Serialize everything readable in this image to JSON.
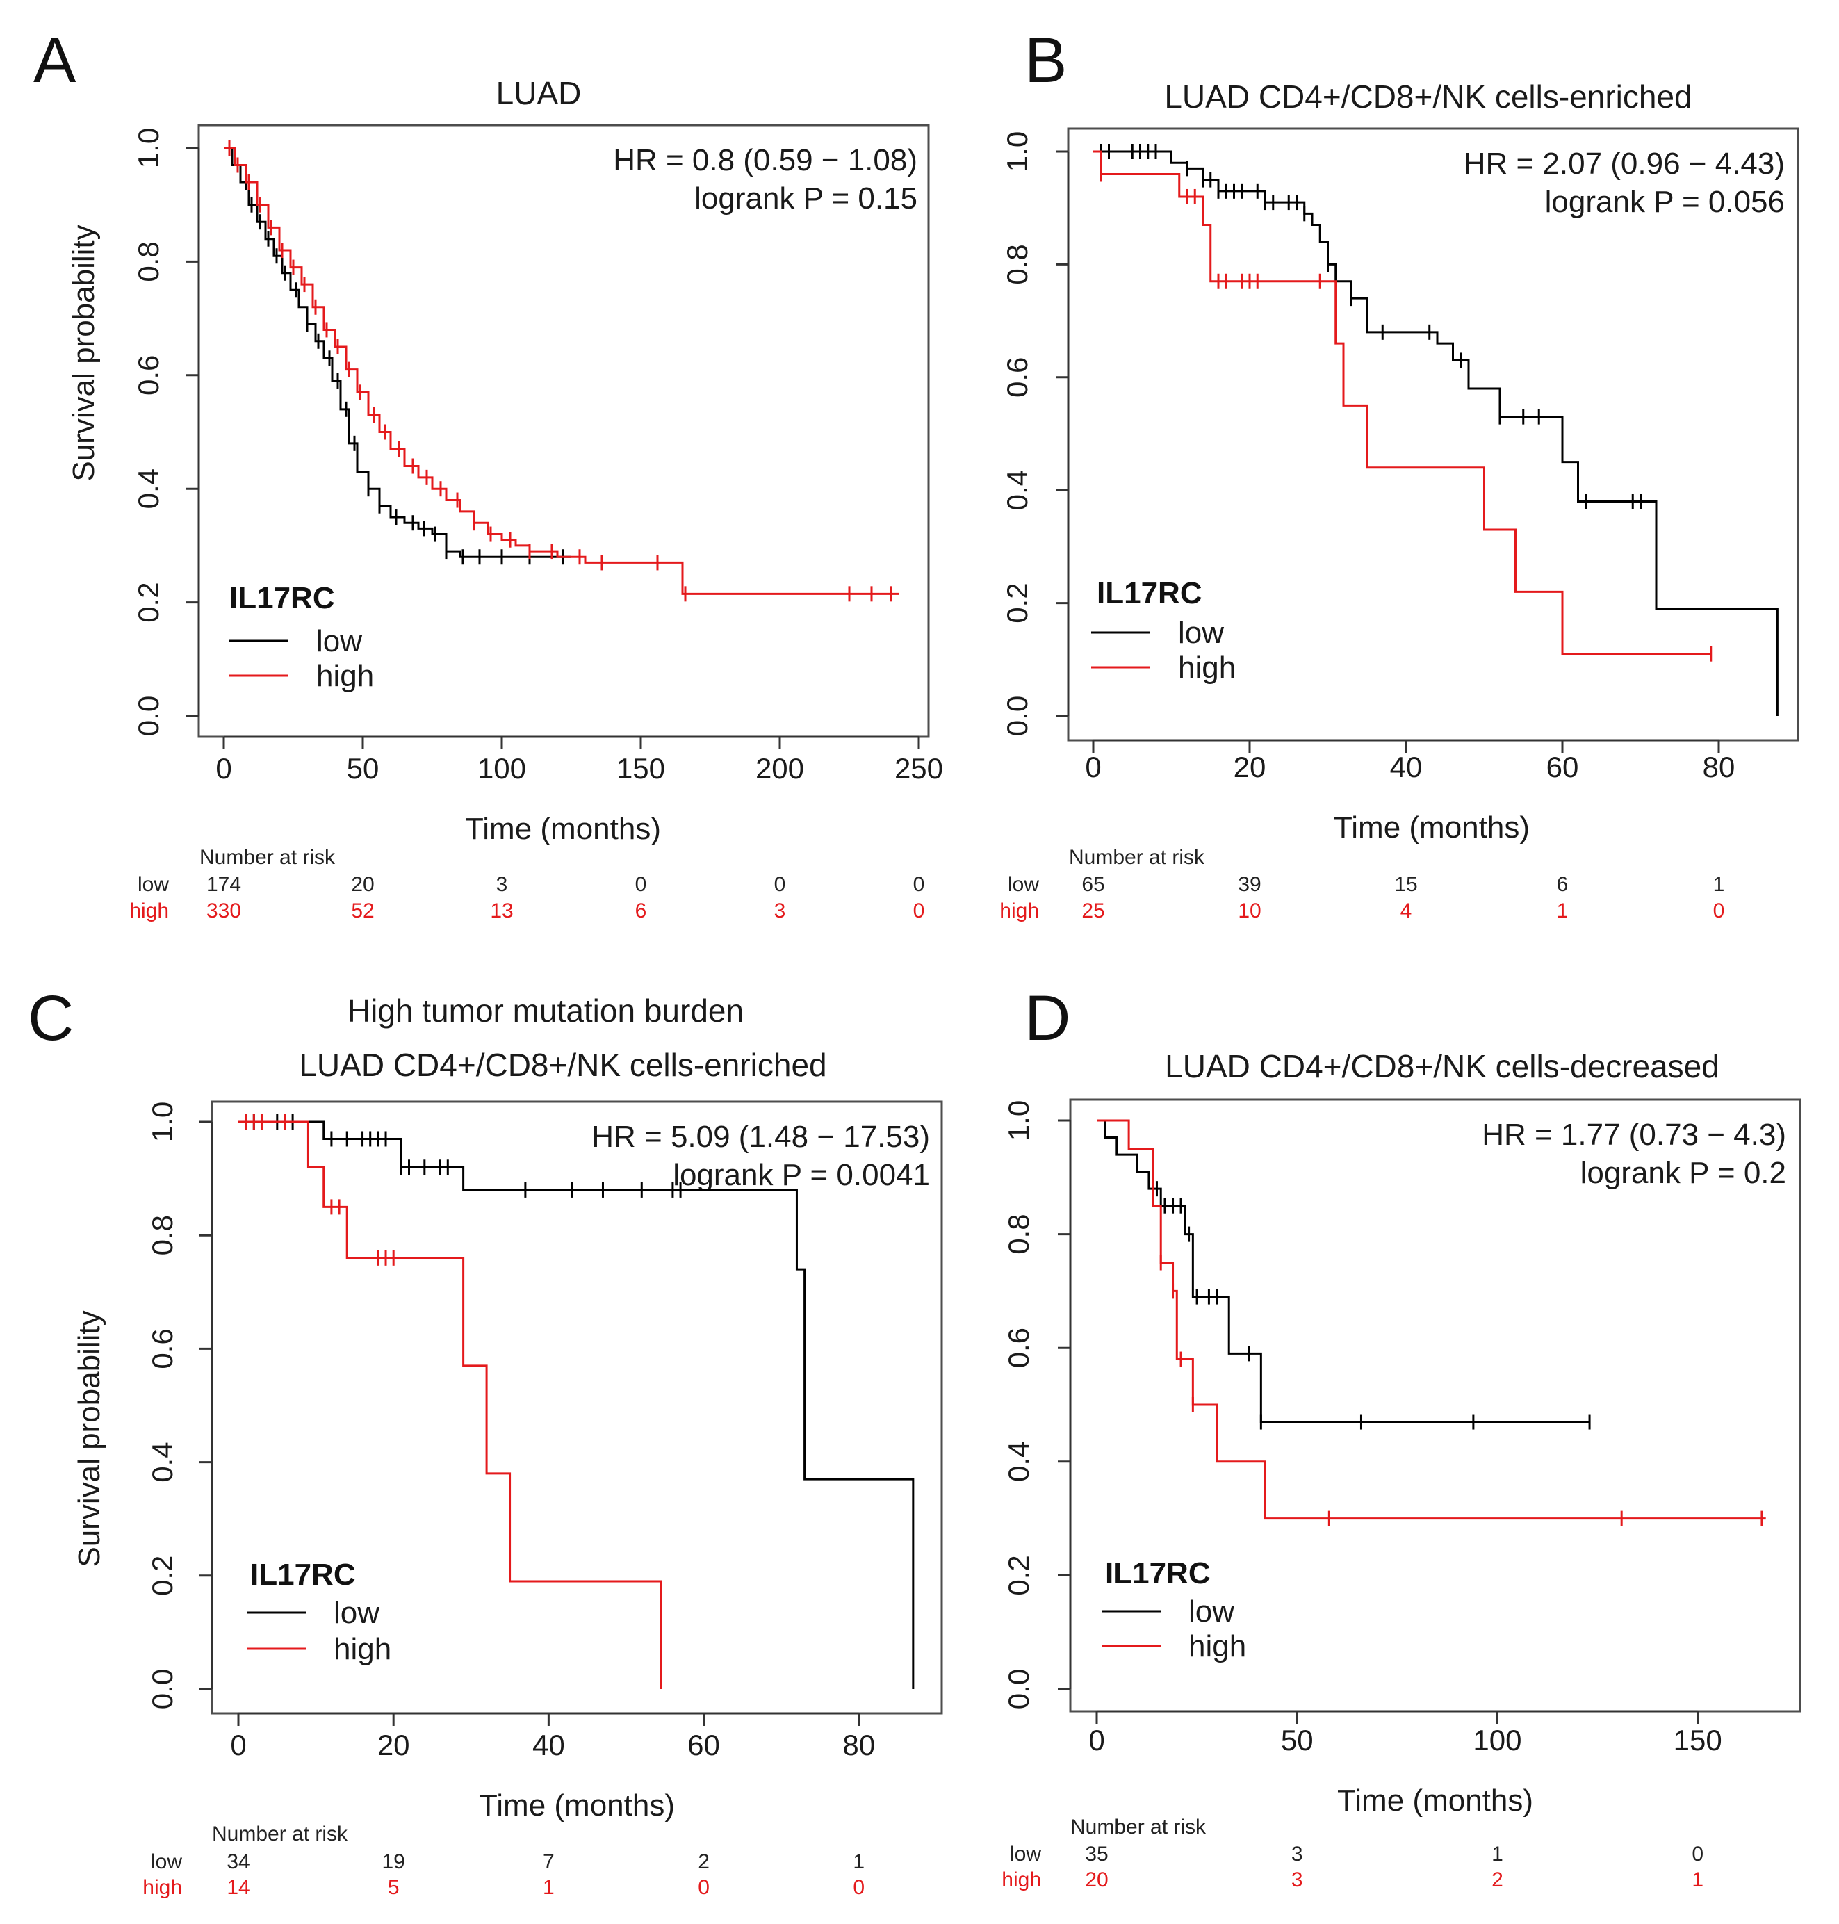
{
  "colors": {
    "low": "#000000",
    "high": "#e41a1c",
    "frame": "#4d4d4d"
  },
  "chart_data": [
    {
      "type": "line",
      "subtype": "kaplan-meier",
      "panel": "A",
      "title_lines": [
        "LUAD"
      ],
      "xlabel": "Time (months)",
      "ylabel": "Survival probability",
      "xlim": [
        0,
        250
      ],
      "ylim": [
        0,
        1
      ],
      "xticks": [
        0,
        50,
        100,
        150,
        200,
        250
      ],
      "xtick_labels": [
        "0",
        "50",
        "100",
        "150",
        "200",
        "250"
      ],
      "yticks": [
        0,
        0.2,
        0.4,
        0.6,
        0.8,
        1
      ],
      "ytick_labels": [
        "0.0",
        "0.2",
        "0.4",
        "0.6",
        "0.8",
        "1.0"
      ],
      "hr_text": "HR = 0.8 (0.59 − 1.08)",
      "p_text": "logrank P = 0.15",
      "legend_title": "IL17RC",
      "series": [
        {
          "name": "low",
          "color_key": "low",
          "x": [
            0,
            3,
            6,
            9,
            12,
            15,
            18,
            21,
            24,
            27,
            30,
            33,
            36,
            39,
            42,
            45,
            48,
            52,
            56,
            60,
            65,
            70,
            75,
            80,
            85,
            90,
            100,
            110,
            120,
            125
          ],
          "y": [
            1,
            0.97,
            0.94,
            0.9,
            0.87,
            0.84,
            0.81,
            0.78,
            0.75,
            0.72,
            0.69,
            0.66,
            0.63,
            0.59,
            0.54,
            0.48,
            0.43,
            0.4,
            0.37,
            0.35,
            0.34,
            0.33,
            0.32,
            0.29,
            0.28,
            0.28,
            0.28,
            0.28,
            0.28,
            0.28
          ],
          "censor_x": [
            2,
            5,
            8,
            10,
            13,
            16,
            19,
            22,
            26,
            30,
            34,
            38,
            41,
            44,
            47,
            52,
            56,
            62,
            68,
            72,
            76,
            80,
            86,
            92,
            100,
            110,
            122
          ],
          "end_x": 125
        },
        {
          "name": "high",
          "color_key": "high",
          "x": [
            0,
            4,
            8,
            12,
            16,
            20,
            24,
            28,
            32,
            36,
            40,
            44,
            48,
            52,
            56,
            60,
            65,
            70,
            75,
            80,
            85,
            90,
            95,
            100,
            105,
            110,
            120,
            130,
            140,
            150,
            165,
            243
          ],
          "y": [
            1,
            0.97,
            0.94,
            0.9,
            0.86,
            0.82,
            0.79,
            0.76,
            0.72,
            0.68,
            0.65,
            0.61,
            0.57,
            0.53,
            0.5,
            0.47,
            0.44,
            0.42,
            0.4,
            0.38,
            0.36,
            0.34,
            0.32,
            0.31,
            0.3,
            0.29,
            0.28,
            0.27,
            0.27,
            0.27,
            0.215,
            0.215
          ],
          "censor_x": [
            2,
            5,
            9,
            13,
            17,
            21,
            25,
            29,
            33,
            37,
            41,
            45,
            49,
            54,
            58,
            63,
            68,
            73,
            78,
            84,
            90,
            96,
            103,
            110,
            118,
            128,
            136,
            156,
            166,
            225,
            233,
            240
          ],
          "end_x": 243
        }
      ],
      "risk": {
        "header": "Number at risk",
        "times": [
          0,
          50,
          100,
          150,
          200,
          250
        ],
        "low": [
          "174",
          "20",
          "3",
          "0",
          "0",
          "0"
        ],
        "high": [
          "330",
          "52",
          "13",
          "6",
          "3",
          "0"
        ]
      }
    },
    {
      "type": "line",
      "subtype": "kaplan-meier",
      "panel": "B",
      "title_lines": [
        "LUAD CD4+/CD8+/NK cells-enriched"
      ],
      "xlabel": "Time (months)",
      "ylabel": "",
      "xlim": [
        0,
        88
      ],
      "ylim": [
        0,
        1
      ],
      "xticks": [
        0,
        20,
        40,
        60,
        80
      ],
      "xtick_labels": [
        "0",
        "20",
        "40",
        "60",
        "80"
      ],
      "yticks": [
        0,
        0.2,
        0.4,
        0.6,
        0.8,
        1
      ],
      "ytick_labels": [
        "0.0",
        "0.2",
        "0.4",
        "0.6",
        "0.8",
        "1.0"
      ],
      "hr_text": "HR = 2.07 (0.96 − 4.43)",
      "p_text": "logrank P = 0.056",
      "legend_title": "IL17RC",
      "series": [
        {
          "name": "low",
          "color_key": "low",
          "x": [
            0,
            10,
            12,
            14,
            16,
            22,
            27,
            28,
            29,
            30,
            31,
            33,
            35,
            39,
            44,
            46,
            48,
            52,
            56,
            60,
            62,
            67,
            72,
            87.5
          ],
          "y": [
            1,
            0.98,
            0.97,
            0.95,
            0.93,
            0.91,
            0.89,
            0.87,
            0.84,
            0.8,
            0.77,
            0.74,
            0.68,
            0.68,
            0.66,
            0.63,
            0.58,
            0.53,
            0.53,
            0.45,
            0.38,
            0.38,
            0.19,
            0
          ],
          "censor_x": [
            1,
            2,
            5,
            6,
            7,
            8,
            12,
            14,
            15,
            16,
            17,
            18,
            19,
            21,
            22,
            23,
            25,
            26,
            27,
            30,
            33,
            37,
            43,
            47,
            52,
            55,
            57,
            63,
            69,
            70
          ],
          "end_x": 87.5
        },
        {
          "name": "high",
          "color_key": "high",
          "x": [
            0,
            1,
            10,
            11,
            14,
            15,
            29,
            30,
            31,
            32,
            34,
            35,
            49,
            50,
            53,
            54,
            59,
            60,
            79
          ],
          "y": [
            1,
            0.96,
            0.96,
            0.92,
            0.87,
            0.77,
            0.77,
            0.77,
            0.66,
            0.55,
            0.55,
            0.44,
            0.44,
            0.33,
            0.33,
            0.22,
            0.22,
            0.11,
            0.11
          ],
          "censor_x": [
            1,
            12,
            13,
            16,
            17,
            19,
            20,
            21,
            29,
            79
          ],
          "end_x": 79
        }
      ],
      "risk": {
        "header": "Number at risk",
        "times": [
          0,
          20,
          40,
          60,
          80
        ],
        "low": [
          "65",
          "39",
          "15",
          "6",
          "1"
        ],
        "high": [
          "25",
          "10",
          "4",
          "1",
          "0"
        ]
      }
    },
    {
      "type": "line",
      "subtype": "kaplan-meier",
      "panel": "C",
      "title_lines": [
        "High tumor mutation burden",
        "LUAD CD4+/CD8+/NK cells-enriched"
      ],
      "xlabel": "Time (months)",
      "ylabel": "Survival probability",
      "xlim": [
        0,
        88
      ],
      "ylim": [
        0,
        1
      ],
      "xticks": [
        0,
        20,
        40,
        60,
        80
      ],
      "xtick_labels": [
        "0",
        "20",
        "40",
        "60",
        "80"
      ],
      "yticks": [
        0,
        0.2,
        0.4,
        0.6,
        0.8,
        1
      ],
      "ytick_labels": [
        "0.0",
        "0.2",
        "0.4",
        "0.6",
        "0.8",
        "1.0"
      ],
      "hr_text": "HR = 5.09 (1.48 − 17.53)",
      "p_text": "logrank P = 0.0041",
      "legend_title": "IL17RC",
      "series": [
        {
          "name": "low",
          "color_key": "low",
          "x": [
            0,
            10,
            11,
            20,
            21,
            28,
            29,
            72,
            73,
            87
          ],
          "y": [
            1,
            1,
            0.97,
            0.97,
            0.92,
            0.92,
            0.88,
            0.74,
            0.37,
            0
          ],
          "censor_x": [
            1,
            2,
            5,
            7,
            12,
            14,
            16,
            17,
            18,
            19,
            21,
            22,
            24,
            26,
            27,
            37,
            43,
            47,
            52,
            56,
            57
          ],
          "end_x": 87
        },
        {
          "name": "high",
          "color_key": "high",
          "x": [
            0,
            8,
            9,
            11,
            14,
            29,
            32,
            35,
            54.5
          ],
          "y": [
            1,
            1,
            0.92,
            0.85,
            0.76,
            0.57,
            0.38,
            0.19,
            0
          ],
          "censor_x": [
            1,
            2,
            3,
            6,
            12,
            13,
            18,
            19,
            20
          ],
          "end_x": 54.5
        }
      ],
      "risk": {
        "header": "Number at risk",
        "times": [
          0,
          20,
          40,
          60,
          80
        ],
        "low": [
          "34",
          "19",
          "7",
          "2",
          "1"
        ],
        "high": [
          "14",
          "5",
          "1",
          "0",
          "0"
        ]
      }
    },
    {
      "type": "line",
      "subtype": "kaplan-meier",
      "panel": "D",
      "title_lines": [
        "LUAD CD4+/CD8+/NK cells-decreased"
      ],
      "xlabel": "Time (months)",
      "ylabel": "",
      "xlim": [
        0,
        170
      ],
      "ylim": [
        0,
        1
      ],
      "xticks": [
        0,
        50,
        100,
        150
      ],
      "xtick_labels": [
        "0",
        "50",
        "100",
        "150"
      ],
      "yticks": [
        0,
        0.2,
        0.4,
        0.6,
        0.8,
        1
      ],
      "ytick_labels": [
        "0.0",
        "0.2",
        "0.4",
        "0.6",
        "0.8",
        "1.0"
      ],
      "hr_text": "HR = 1.77 (0.73 − 4.3)",
      "p_text": "logrank P = 0.2",
      "legend_title": "IL17RC",
      "series": [
        {
          "name": "low",
          "color_key": "low",
          "x": [
            0,
            2,
            5,
            10,
            13,
            16,
            22,
            24,
            26,
            33,
            39,
            41,
            123
          ],
          "y": [
            1,
            0.97,
            0.94,
            0.91,
            0.88,
            0.85,
            0.8,
            0.69,
            0.69,
            0.59,
            0.59,
            0.47,
            0.47
          ],
          "censor_x": [
            15,
            17,
            19,
            21,
            23,
            25,
            28,
            30,
            38,
            41,
            66,
            94,
            123
          ],
          "end_x": 123
        },
        {
          "name": "high",
          "color_key": "high",
          "x": [
            0,
            8,
            14,
            16,
            19,
            20,
            22,
            24,
            30,
            42,
            167
          ],
          "y": [
            1,
            0.95,
            0.85,
            0.75,
            0.7,
            0.58,
            0.58,
            0.5,
            0.4,
            0.3,
            0.3
          ],
          "censor_x": [
            16,
            19,
            21,
            24,
            58,
            131,
            166
          ],
          "end_x": 167
        }
      ],
      "risk": {
        "header": "Number at risk",
        "times": [
          0,
          50,
          100,
          150
        ],
        "low": [
          "35",
          "3",
          "1",
          "0"
        ],
        "high": [
          "20",
          "3",
          "2",
          "1"
        ]
      }
    }
  ]
}
